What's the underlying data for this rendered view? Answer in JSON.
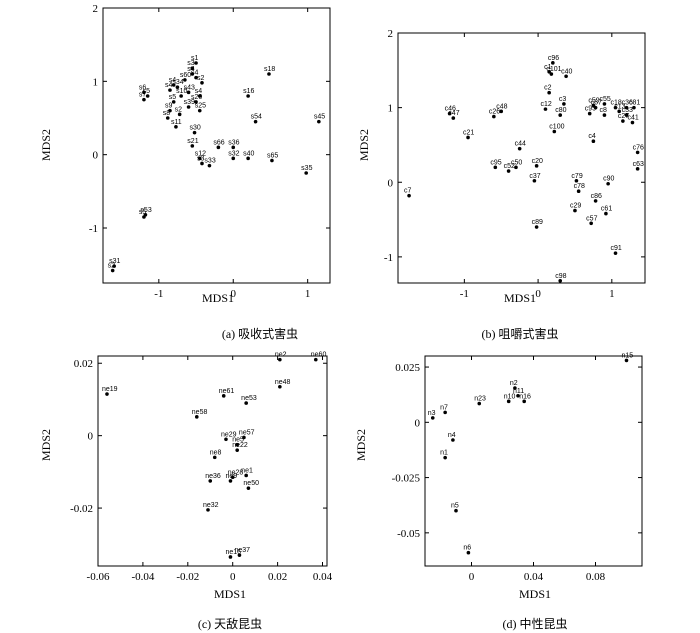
{
  "chart_data": [
    {
      "type": "scatter",
      "caption": "(a) 吸收式害虫",
      "xlabel": "MDS1",
      "ylabel": "MDS2",
      "xlim": [
        -1.75,
        1.3
      ],
      "ylim": [
        -1.75,
        2
      ],
      "xticks": [
        -1,
        0,
        1
      ],
      "yticks": [
        -1,
        0,
        1,
        2
      ],
      "grid": false,
      "points": [
        {
          "label": "s18",
          "x": 0.48,
          "y": 1.1
        },
        {
          "label": "s16",
          "x": 0.2,
          "y": 0.8
        },
        {
          "label": "s45",
          "x": 1.15,
          "y": 0.45
        },
        {
          "label": "s54",
          "x": 0.3,
          "y": 0.45
        },
        {
          "label": "s36",
          "x": 0.0,
          "y": 0.1
        },
        {
          "label": "s66",
          "x": -0.2,
          "y": 0.1
        },
        {
          "label": "s32",
          "x": 0.0,
          "y": -0.05
        },
        {
          "label": "s40",
          "x": 0.2,
          "y": -0.05
        },
        {
          "label": "s65",
          "x": 0.52,
          "y": -0.08
        },
        {
          "label": "s35",
          "x": 0.98,
          "y": -0.25
        },
        {
          "label": "s21",
          "x": -0.55,
          "y": 0.12
        },
        {
          "label": "s12",
          "x": -0.45,
          "y": -0.05
        },
        {
          "label": "s3",
          "x": -0.42,
          "y": -0.12
        },
        {
          "label": "s33",
          "x": -0.32,
          "y": -0.15
        },
        {
          "label": "s30",
          "x": -0.52,
          "y": 0.3
        },
        {
          "label": "s11",
          "x": -0.77,
          "y": 0.38
        },
        {
          "label": "s8",
          "x": -0.88,
          "y": 0.5
        },
        {
          "label": "s1",
          "x": -0.5,
          "y": 1.25
        },
        {
          "label": "s3",
          "x": -0.55,
          "y": 1.18
        },
        {
          "label": "s4",
          "x": -0.55,
          "y": 1.1
        },
        {
          "label": "s4",
          "x": -0.8,
          "y": 0.95
        },
        {
          "label": "s4",
          "x": -0.5,
          "y": 1.05
        },
        {
          "label": "s2",
          "x": -0.42,
          "y": 0.98
        },
        {
          "label": "s60",
          "x": -0.65,
          "y": 1.02
        },
        {
          "label": "s34",
          "x": -0.75,
          "y": 0.92
        },
        {
          "label": "s4",
          "x": -0.85,
          "y": 0.88
        },
        {
          "label": "s10",
          "x": -0.7,
          "y": 0.8
        },
        {
          "label": "s43",
          "x": -0.6,
          "y": 0.85
        },
        {
          "label": "s20",
          "x": -0.5,
          "y": 0.72
        },
        {
          "label": "s5",
          "x": -0.8,
          "y": 0.72
        },
        {
          "label": "s4",
          "x": -0.45,
          "y": 0.8
        },
        {
          "label": "s39",
          "x": -0.6,
          "y": 0.65
        },
        {
          "label": "s25",
          "x": -0.45,
          "y": 0.6
        },
        {
          "label": "s9",
          "x": -0.85,
          "y": 0.6
        },
        {
          "label": "s2",
          "x": -0.72,
          "y": 0.55
        },
        {
          "label": "s6",
          "x": -1.2,
          "y": 0.85
        },
        {
          "label": "s5",
          "x": -1.15,
          "y": 0.8
        },
        {
          "label": "s7",
          "x": -1.2,
          "y": 0.75
        },
        {
          "label": "s53",
          "x": -1.18,
          "y": -0.82
        },
        {
          "label": "s5",
          "x": -1.2,
          "y": -0.85
        },
        {
          "label": "s31",
          "x": -1.6,
          "y": -1.52
        },
        {
          "label": "s2",
          "x": -1.62,
          "y": -1.58
        }
      ]
    },
    {
      "type": "scatter",
      "caption": "(b) 咀嚼式害虫",
      "xlabel": "MDS1",
      "ylabel": "MDS2",
      "xlim": [
        -1.9,
        1.45
      ],
      "ylim": [
        -1.35,
        2
      ],
      "xticks": [
        -1,
        0,
        1
      ],
      "yticks": [
        -1,
        0,
        1,
        2
      ],
      "grid": false,
      "points": [
        {
          "label": "c96",
          "x": 0.2,
          "y": 1.6
        },
        {
          "label": "c101",
          "x": 0.18,
          "y": 1.45
        },
        {
          "label": "c40",
          "x": 0.38,
          "y": 1.42
        },
        {
          "label": "c1",
          "x": 0.15,
          "y": 1.48
        },
        {
          "label": "c2",
          "x": 0.15,
          "y": 1.2
        },
        {
          "label": "c3",
          "x": 0.35,
          "y": 1.05
        },
        {
          "label": "c55",
          "x": 0.9,
          "y": 1.05
        },
        {
          "label": "c59",
          "x": 0.75,
          "y": 1.03
        },
        {
          "label": "c67",
          "x": 0.78,
          "y": 1.0
        },
        {
          "label": "c48",
          "x": -0.5,
          "y": 0.95
        },
        {
          "label": "c46",
          "x": -1.2,
          "y": 0.92
        },
        {
          "label": "c47",
          "x": -1.15,
          "y": 0.86
        },
        {
          "label": "c26",
          "x": -0.6,
          "y": 0.88
        },
        {
          "label": "c12",
          "x": 0.1,
          "y": 0.98
        },
        {
          "label": "c95",
          "x": 0.7,
          "y": 0.92
        },
        {
          "label": "c8",
          "x": 0.9,
          "y": 0.9
        },
        {
          "label": "c80",
          "x": 0.3,
          "y": 0.9
        },
        {
          "label": "c18",
          "x": 1.05,
          "y": 1.0
        },
        {
          "label": "c36",
          "x": 1.2,
          "y": 1.0
        },
        {
          "label": "c81",
          "x": 1.3,
          "y": 1.0
        },
        {
          "label": "c13",
          "x": 1.1,
          "y": 0.95
        },
        {
          "label": "c33",
          "x": 1.2,
          "y": 0.9
        },
        {
          "label": "c41",
          "x": 1.28,
          "y": 0.8
        },
        {
          "label": "c27",
          "x": 1.15,
          "y": 0.82
        },
        {
          "label": "c100",
          "x": 0.22,
          "y": 0.68
        },
        {
          "label": "c21",
          "x": -0.95,
          "y": 0.6
        },
        {
          "label": "c4",
          "x": 0.75,
          "y": 0.55
        },
        {
          "label": "c44",
          "x": -0.25,
          "y": 0.45
        },
        {
          "label": "c76",
          "x": 1.35,
          "y": 0.4
        },
        {
          "label": "c20",
          "x": -0.02,
          "y": 0.22
        },
        {
          "label": "c50",
          "x": -0.3,
          "y": 0.2
        },
        {
          "label": "c95",
          "x": -0.58,
          "y": 0.2
        },
        {
          "label": "c52",
          "x": -0.4,
          "y": 0.15
        },
        {
          "label": "c63",
          "x": 1.35,
          "y": 0.18
        },
        {
          "label": "c37",
          "x": -0.05,
          "y": 0.02
        },
        {
          "label": "c79",
          "x": 0.52,
          "y": 0.02
        },
        {
          "label": "c90",
          "x": 0.95,
          "y": -0.02
        },
        {
          "label": "c78",
          "x": 0.55,
          "y": -0.12
        },
        {
          "label": "c86",
          "x": 0.78,
          "y": -0.25
        },
        {
          "label": "c7",
          "x": -1.75,
          "y": -0.18
        },
        {
          "label": "c29",
          "x": 0.5,
          "y": -0.38
        },
        {
          "label": "c61",
          "x": 0.92,
          "y": -0.42
        },
        {
          "label": "c57",
          "x": 0.72,
          "y": -0.55
        },
        {
          "label": "c89",
          "x": -0.02,
          "y": -0.6
        },
        {
          "label": "c91",
          "x": 1.05,
          "y": -0.95
        },
        {
          "label": "c98",
          "x": 0.3,
          "y": -1.32
        }
      ]
    },
    {
      "type": "scatter",
      "caption": "(c) 天敌昆虫",
      "xlabel": "MDS1",
      "ylabel": "MDS2",
      "xlim": [
        -0.06,
        0.042
      ],
      "ylim": [
        -0.036,
        0.022
      ],
      "xticks": [
        -0.06,
        -0.04,
        -0.02,
        0,
        0.02,
        0.04
      ],
      "xtick_labels": [
        "-0.06",
        "-0.04",
        "-0.02",
        "0",
        "0.02",
        "0.04"
      ],
      "yticks": [
        -0.02,
        0,
        0.02
      ],
      "ytick_labels": [
        "-0.02",
        "0",
        "0.02"
      ],
      "grid": false,
      "points": [
        {
          "label": "ne2",
          "x": 0.021,
          "y": 0.021
        },
        {
          "label": "ne60",
          "x": 0.037,
          "y": 0.021
        },
        {
          "label": "ne48",
          "x": 0.021,
          "y": 0.0135
        },
        {
          "label": "ne19",
          "x": -0.056,
          "y": 0.0115
        },
        {
          "label": "ne61",
          "x": -0.004,
          "y": 0.011
        },
        {
          "label": "ne53",
          "x": 0.006,
          "y": 0.009
        },
        {
          "label": "ne58",
          "x": -0.016,
          "y": 0.0052
        },
        {
          "label": "ne57",
          "x": 0.005,
          "y": -0.0005
        },
        {
          "label": "ne29",
          "x": -0.003,
          "y": -0.001
        },
        {
          "label": "ne5",
          "x": 0.002,
          "y": -0.0025
        },
        {
          "label": "ne22",
          "x": 0.002,
          "y": -0.004
        },
        {
          "label": "ne8",
          "x": -0.008,
          "y": -0.006
        },
        {
          "label": "ne36",
          "x": -0.01,
          "y": -0.0125
        },
        {
          "label": "ne28",
          "x": 0.0,
          "y": -0.0115
        },
        {
          "label": "ne1",
          "x": 0.006,
          "y": -0.011
        },
        {
          "label": "ne9",
          "x": -0.001,
          "y": -0.0125
        },
        {
          "label": "ne50",
          "x": 0.007,
          "y": -0.0145
        },
        {
          "label": "ne32",
          "x": -0.011,
          "y": -0.0205
        },
        {
          "label": "ne16",
          "x": -0.001,
          "y": -0.0335
        },
        {
          "label": "ne37",
          "x": 0.003,
          "y": -0.033
        }
      ]
    },
    {
      "type": "scatter",
      "caption": "(d) 中性昆虫",
      "xlabel": "MDS1",
      "ylabel": "MDS2",
      "xlim": [
        -0.03,
        0.11
      ],
      "ylim": [
        -0.065,
        0.03
      ],
      "xticks": [
        0,
        0.04,
        0.08
      ],
      "xtick_labels": [
        "0",
        "0.04",
        "0.08"
      ],
      "yticks": [
        -0.05,
        -0.025,
        0,
        0.025
      ],
      "ytick_labels": [
        "-0.05",
        "-0.025",
        "0",
        "0.025"
      ],
      "grid": false,
      "points": [
        {
          "label": "n15",
          "x": 0.1,
          "y": 0.028
        },
        {
          "label": "n2",
          "x": 0.028,
          "y": 0.0155
        },
        {
          "label": "n11",
          "x": 0.03,
          "y": 0.012
        },
        {
          "label": "n16",
          "x": 0.034,
          "y": 0.0095
        },
        {
          "label": "n10",
          "x": 0.024,
          "y": 0.0095
        },
        {
          "label": "n23",
          "x": 0.005,
          "y": 0.0085
        },
        {
          "label": "n7",
          "x": -0.017,
          "y": 0.0045
        },
        {
          "label": "n3",
          "x": -0.025,
          "y": 0.002
        },
        {
          "label": "n4",
          "x": -0.012,
          "y": -0.008
        },
        {
          "label": "n1",
          "x": -0.017,
          "y": -0.016
        },
        {
          "label": "n5",
          "x": -0.01,
          "y": -0.04
        },
        {
          "label": "n6",
          "x": -0.002,
          "y": -0.059
        }
      ]
    }
  ]
}
